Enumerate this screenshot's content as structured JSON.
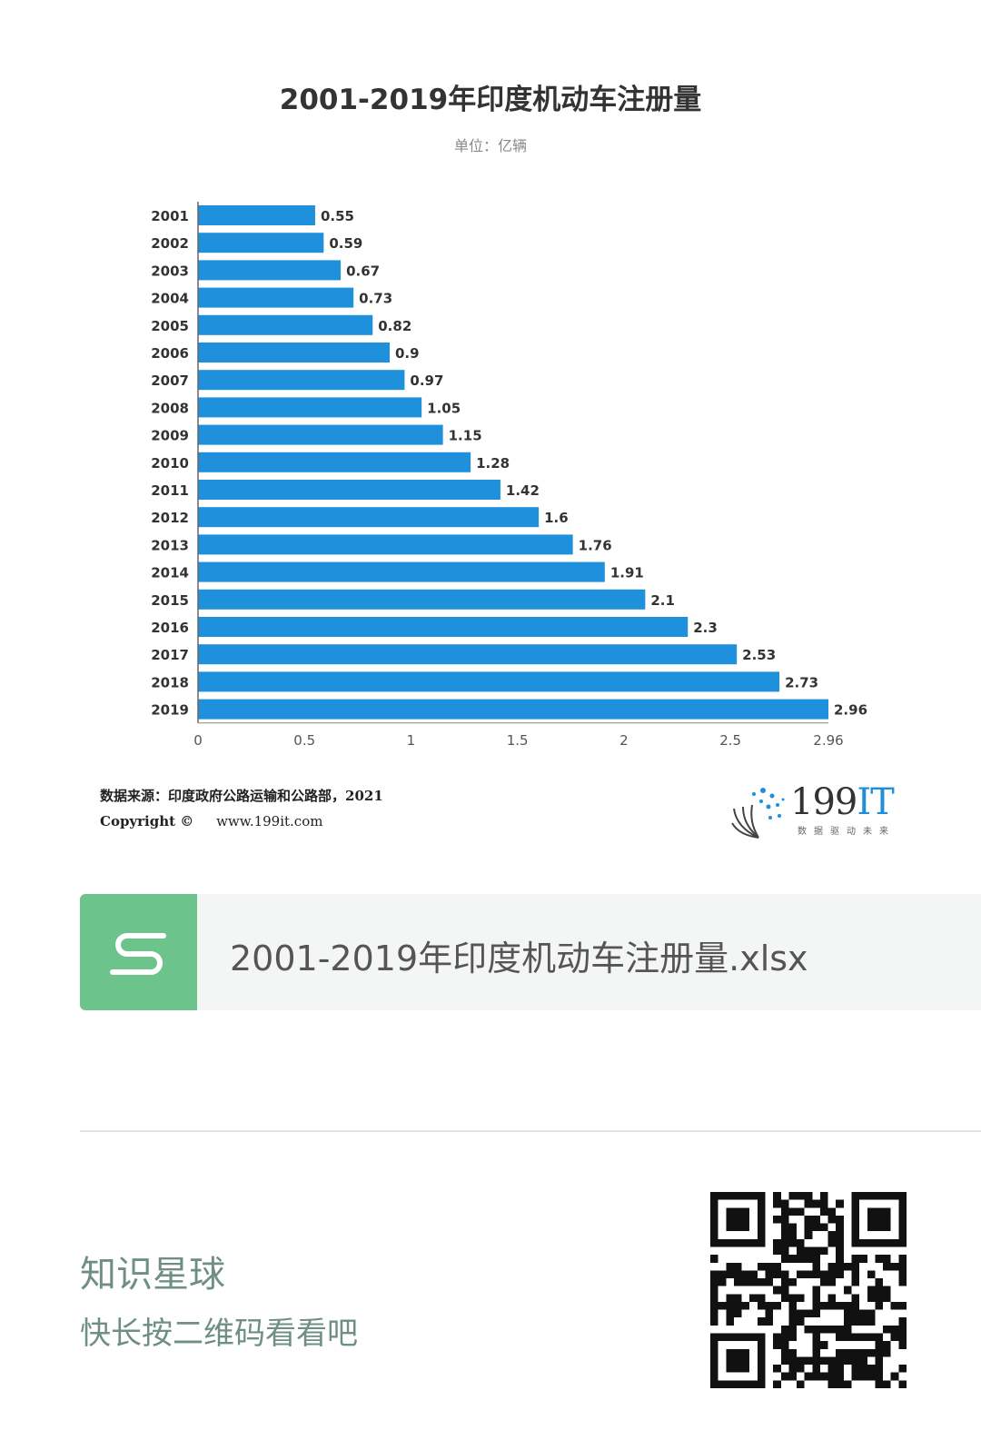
{
  "chart_data": {
    "type": "bar",
    "orientation": "horizontal",
    "title": "2001-2019年印度机动车注册量",
    "subtitle": "单位：亿辆",
    "categories": [
      "2001",
      "2002",
      "2003",
      "2004",
      "2005",
      "2006",
      "2007",
      "2008",
      "2009",
      "2010",
      "2011",
      "2012",
      "2013",
      "2014",
      "2015",
      "2016",
      "2017",
      "2018",
      "2019"
    ],
    "values": [
      0.55,
      0.59,
      0.67,
      0.73,
      0.82,
      0.9,
      0.97,
      1.05,
      1.15,
      1.28,
      1.42,
      1.6,
      1.76,
      1.91,
      2.1,
      2.3,
      2.53,
      2.73,
      2.96
    ],
    "value_labels": [
      "0.55",
      "0.59",
      "0.67",
      "0.73",
      "0.82",
      "0.9",
      "0.97",
      "1.05",
      "1.15",
      "1.28",
      "1.42",
      "1.6",
      "1.76",
      "1.91",
      "2.1",
      "2.3",
      "2.53",
      "2.73",
      "2.96"
    ],
    "xticks": [
      0,
      0.5,
      1,
      1.5,
      2,
      2.5,
      2.96
    ],
    "xtick_labels": [
      "0",
      "0.5",
      "1",
      "1.5",
      "2",
      "2.5",
      "2.96"
    ],
    "xlim": [
      0,
      2.96
    ],
    "xlabel": "",
    "ylabel": "",
    "bar_color": "#1e90dc",
    "grid": false
  },
  "source": {
    "text": "数据来源：印度政府公路运输和公路部，2021",
    "copyright_label": "Copyright ©",
    "website": "www.199it.com"
  },
  "brand": {
    "name_num": "199",
    "name_it": "IT",
    "tagline": "数据驱动未来"
  },
  "file": {
    "name": "2001-2019年印度机动车注册量.xlsx",
    "icon": "spreadsheet-s-icon",
    "icon_color": "#6cc38c"
  },
  "promo": {
    "title": "知识星球",
    "subtitle": "快长按二维码看看吧",
    "qr_icon": "qr-code-icon"
  }
}
